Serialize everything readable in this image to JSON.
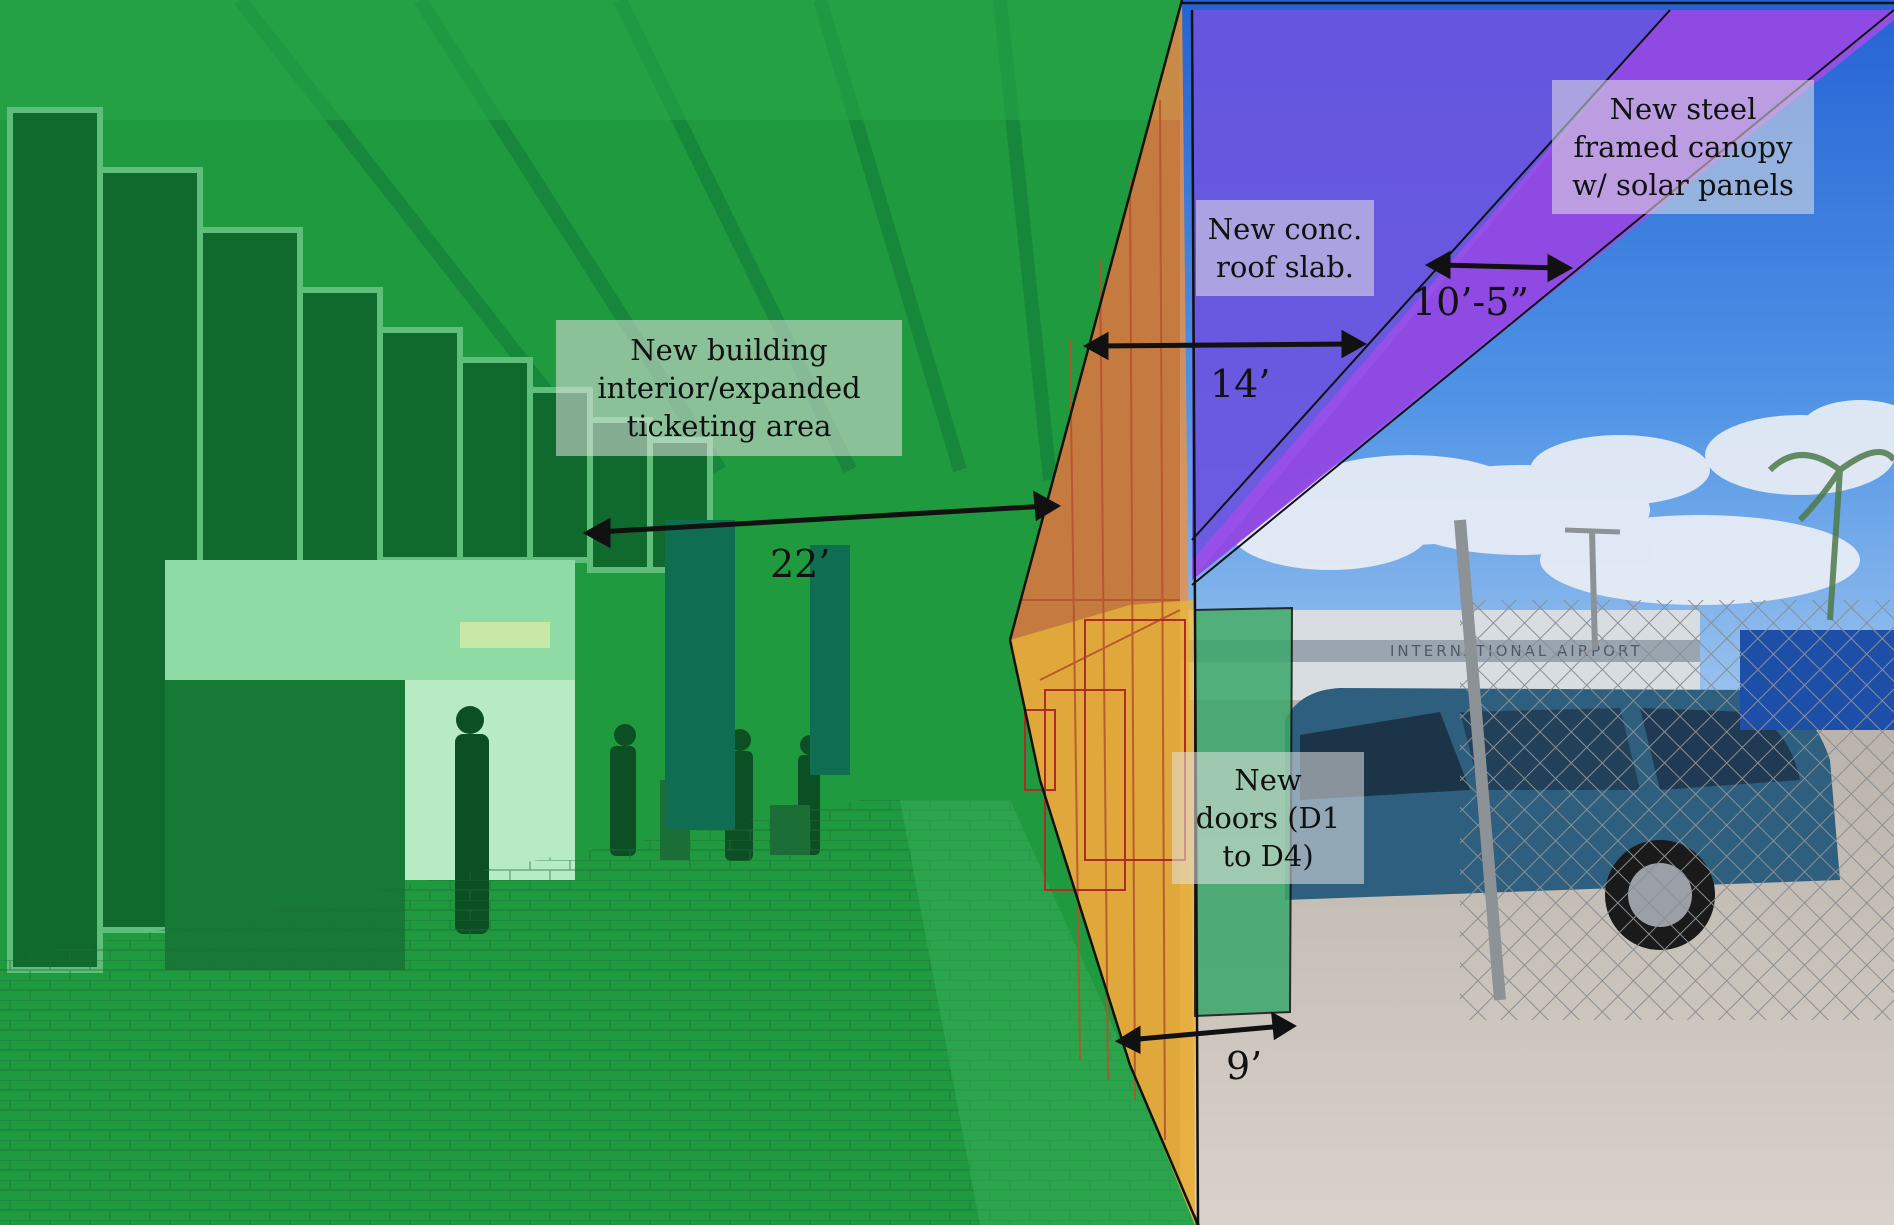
{
  "labels": {
    "building": [
      "New building",
      "interior/expanded",
      "ticketing area"
    ],
    "roof_slab": [
      "New conc.",
      "roof slab."
    ],
    "canopy": [
      "New steel",
      "framed canopy",
      "w/ solar panels"
    ],
    "doors": [
      "New",
      "doors (D1",
      "to D4)"
    ]
  },
  "dimensions": {
    "interior_depth": "22’",
    "slab_depth": "14’",
    "canopy_depth": "10’-5”",
    "door_offset": "9’"
  },
  "signage": {
    "airport_sign": "INTERNATIONAL AIRPORT"
  },
  "colors": {
    "building_overlay": "#1f9a3f",
    "facade_overlay": "#e8914a",
    "roof_slab_overlay": "#6b55e0",
    "canopy_overlay": "#9a4fe8",
    "doors_overlay": "#3aa86a",
    "sky_top": "#2f6fd6",
    "paving": "#cfc6bd"
  }
}
